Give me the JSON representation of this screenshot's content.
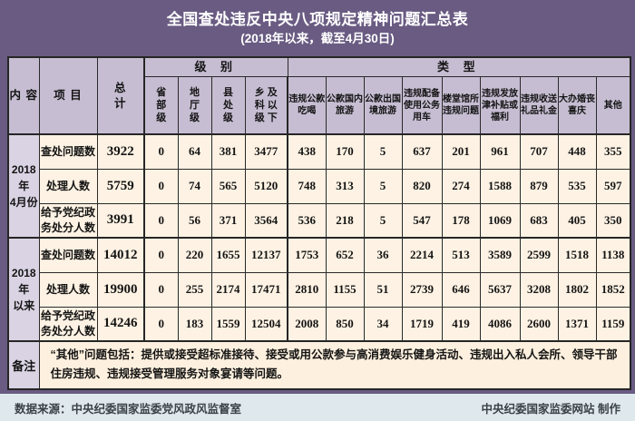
{
  "title": "全国查处违反中央八项规定精神问题汇总表",
  "subtitle": "(2018年以来，截至4月30日)",
  "colors": {
    "page_background": "#695b82",
    "header_cell": "#c6bdd2",
    "label_cell": "#d9d3e3",
    "data_cell": "#fdf2e3",
    "border": "#262626",
    "footer_bar": "#dfe9ed",
    "title_text": "#ffffff"
  },
  "table": {
    "header": {
      "content": "内 容",
      "project": "项 目",
      "total": "总\n计",
      "groups": [
        {
          "label": "级 别",
          "columns": [
            "省\n部\n级",
            "地\n厅\n级",
            "县\n处\n级",
            "乡 及\n科 以\n级 下"
          ]
        },
        {
          "label": "类 型",
          "columns": [
            "违规公款\n吃喝",
            "公款国内\n旅游",
            "公款出国\n境旅游",
            "违规配备\n使用公务\n用车",
            "楼堂馆所\n违规问题",
            "违规发放\n津补贴或\n福利",
            "违规收送\n礼品礼金",
            "大办婚丧\n喜庆",
            "其他"
          ]
        }
      ]
    },
    "row_groups": [
      {
        "period": "2018年\n4月份",
        "rows": [
          {
            "item": "查处问题数",
            "total": "3922",
            "values": [
              "0",
              "64",
              "381",
              "3477",
              "438",
              "170",
              "5",
              "637",
              "201",
              "961",
              "707",
              "448",
              "355"
            ]
          },
          {
            "item": "处理人数",
            "total": "5759",
            "values": [
              "0",
              "74",
              "565",
              "5120",
              "748",
              "313",
              "5",
              "820",
              "274",
              "1588",
              "879",
              "535",
              "597"
            ]
          },
          {
            "item": "给予党纪政\n务处分人数",
            "total": "3991",
            "values": [
              "0",
              "56",
              "371",
              "3564",
              "536",
              "218",
              "5",
              "547",
              "178",
              "1069",
              "683",
              "405",
              "350"
            ]
          }
        ]
      },
      {
        "period": "2018年\n以来",
        "rows": [
          {
            "item": "查处问题数",
            "total": "14012",
            "values": [
              "0",
              "220",
              "1655",
              "12137",
              "1753",
              "652",
              "36",
              "2214",
              "513",
              "3589",
              "2599",
              "1518",
              "1138"
            ]
          },
          {
            "item": "处理人数",
            "total": "19900",
            "values": [
              "0",
              "255",
              "2174",
              "17471",
              "2810",
              "1155",
              "51",
              "2739",
              "646",
              "5637",
              "3208",
              "1802",
              "1852"
            ]
          },
          {
            "item": "给予党纪政\n务处分人数",
            "total": "14246",
            "values": [
              "0",
              "183",
              "1559",
              "12504",
              "2008",
              "850",
              "34",
              "1719",
              "419",
              "4086",
              "2600",
              "1371",
              "1159"
            ]
          }
        ]
      }
    ],
    "note": {
      "label": "备注",
      "text": "“其他”问题包括：提供或接受超标准接待、接受或用公款参与高消费娱乐健身活动、违规出入私人会所、领导干部住房违规、违规接受管理服务对象宴请等问题。"
    }
  },
  "footer": {
    "source": "数据来源：中央纪委国家监委党风政风监督室",
    "credit": "中央纪委国家监委网站  制作"
  }
}
